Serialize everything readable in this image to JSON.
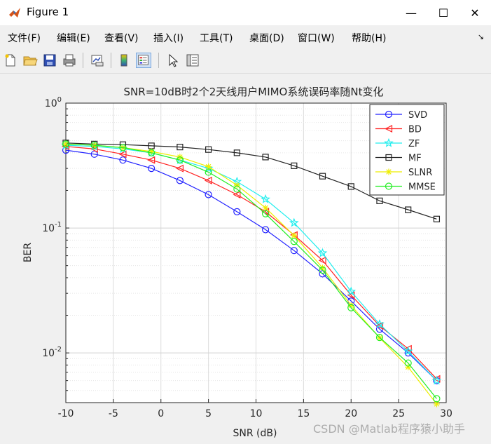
{
  "window": {
    "title": "Figure 1",
    "minimize": "—",
    "maximize": "☐",
    "close": "✕"
  },
  "menu": [
    "文件(F)",
    "编辑(E)",
    "查看(V)",
    "插入(I)",
    "工具(T)",
    "桌面(D)",
    "窗口(W)",
    "帮助(H)"
  ],
  "menu_overflow": "↘",
  "toolbar": [
    "new-file-icon",
    "open-folder-icon",
    "save-icon",
    "print-icon",
    "link-plot-icon",
    "colorbar-icon",
    "legend-icon",
    "pointer-icon",
    "property-editor-icon"
  ],
  "watermark": "CSDN @Matlab程序猿小助手",
  "chart_data": {
    "type": "line",
    "title": "SNR=10dB时2个2天线用户MIMO系统误码率随Nt变化",
    "xlabel": "SNR (dB)",
    "ylabel": "BER",
    "xlim": [
      -10,
      30
    ],
    "ylim": [
      0.004,
      1
    ],
    "yscale": "log",
    "grid": true,
    "legend_position": "top-right",
    "xticks": [
      "-10",
      "-5",
      "0",
      "5",
      "10",
      "15",
      "20",
      "25",
      "30"
    ],
    "yticks": [
      {
        "base": "10",
        "exp": "0",
        "value": 1
      },
      {
        "base": "10",
        "exp": "-1",
        "value": 0.1
      },
      {
        "base": "10",
        "exp": "-2",
        "value": 0.01
      }
    ],
    "x": [
      -10,
      -7,
      -4,
      -1,
      2,
      5,
      8,
      11,
      14,
      17,
      20,
      23,
      26,
      29
    ],
    "series": [
      {
        "name": "SVD",
        "color": "#2222ff",
        "marker": "circle",
        "values": [
          0.42,
          0.39,
          0.35,
          0.3,
          0.24,
          0.185,
          0.135,
          0.097,
          0.066,
          0.043,
          0.026,
          0.0155,
          0.01,
          0.006
        ]
      },
      {
        "name": "BD",
        "color": "#ff2222",
        "marker": "triangle-left",
        "values": [
          0.45,
          0.43,
          0.39,
          0.35,
          0.3,
          0.24,
          0.185,
          0.135,
          0.088,
          0.055,
          0.029,
          0.0165,
          0.0108,
          0.0062
        ]
      },
      {
        "name": "ZF",
        "color": "#22eeee",
        "marker": "star",
        "values": [
          0.46,
          0.45,
          0.43,
          0.4,
          0.35,
          0.3,
          0.235,
          0.17,
          0.11,
          0.063,
          0.031,
          0.017,
          0.0103,
          0.006
        ]
      },
      {
        "name": "MF",
        "color": "#222222",
        "marker": "square",
        "values": [
          0.48,
          0.47,
          0.465,
          0.455,
          0.445,
          0.425,
          0.4,
          0.37,
          0.315,
          0.26,
          0.215,
          0.165,
          0.14,
          0.118
        ]
      },
      {
        "name": "SLNR",
        "color": "#eeee00",
        "marker": "asterisk",
        "values": [
          0.47,
          0.46,
          0.44,
          0.41,
          0.37,
          0.31,
          0.22,
          0.145,
          0.087,
          0.048,
          0.024,
          0.0132,
          0.0077,
          0.0039
        ]
      },
      {
        "name": "MMSE",
        "color": "#22ee22",
        "marker": "circle",
        "values": [
          0.47,
          0.46,
          0.44,
          0.4,
          0.35,
          0.28,
          0.205,
          0.13,
          0.078,
          0.046,
          0.023,
          0.0133,
          0.0083,
          0.0043
        ]
      }
    ]
  }
}
